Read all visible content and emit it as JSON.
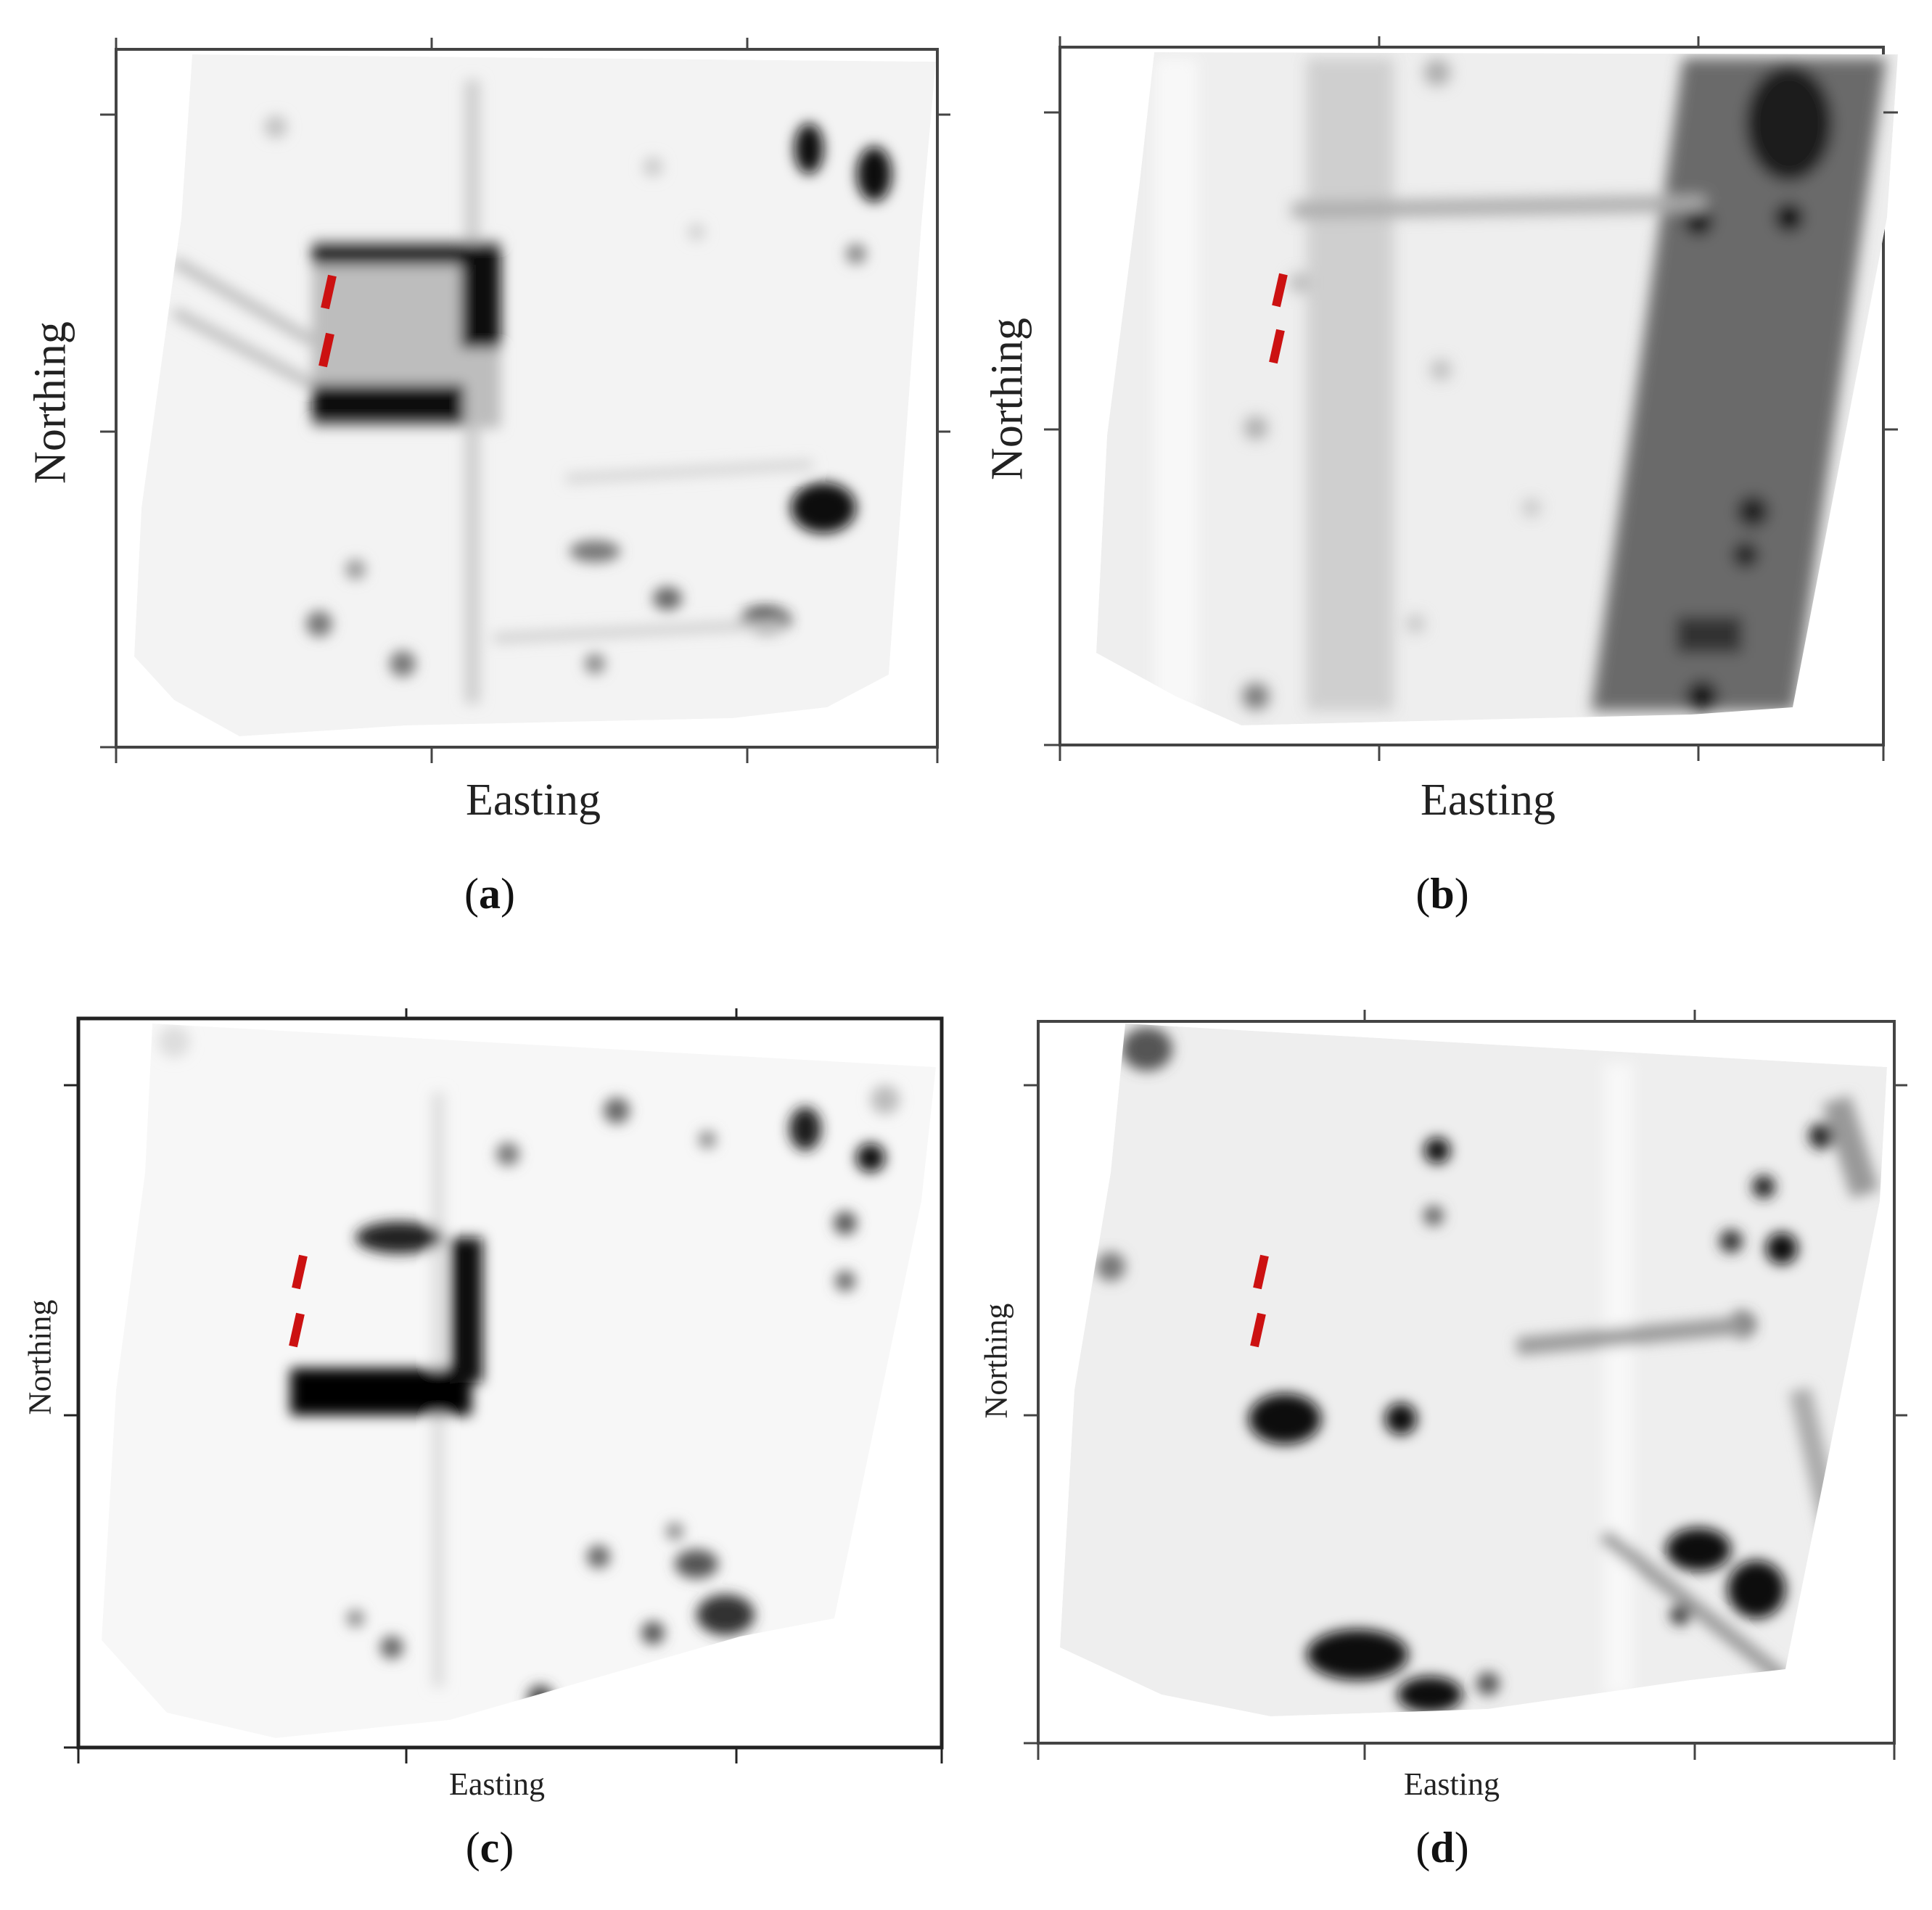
{
  "figure": {
    "panels": [
      {
        "id": "a",
        "caption_letter": "a",
        "xlabel": "Easting",
        "ylabel": "Northing",
        "colormap": "grayscale (white = low, black = high)",
        "marker_color": "#cc1111"
      },
      {
        "id": "b",
        "caption_letter": "b",
        "xlabel": "Easting",
        "ylabel": "Northing",
        "colormap": "grayscale (white = low, black = high)",
        "marker_color": "#cc1111"
      },
      {
        "id": "c",
        "caption_letter": "c",
        "xlabel": "Easting",
        "ylabel": "Northing",
        "colormap": "grayscale (white = low, black = high)",
        "marker_color": "#cc1111"
      },
      {
        "id": "d",
        "caption_letter": "d",
        "xlabel": "Easting",
        "ylabel": "Northing",
        "colormap": "grayscale (white = low, black = high)",
        "marker_color": "#cc1111"
      }
    ]
  }
}
